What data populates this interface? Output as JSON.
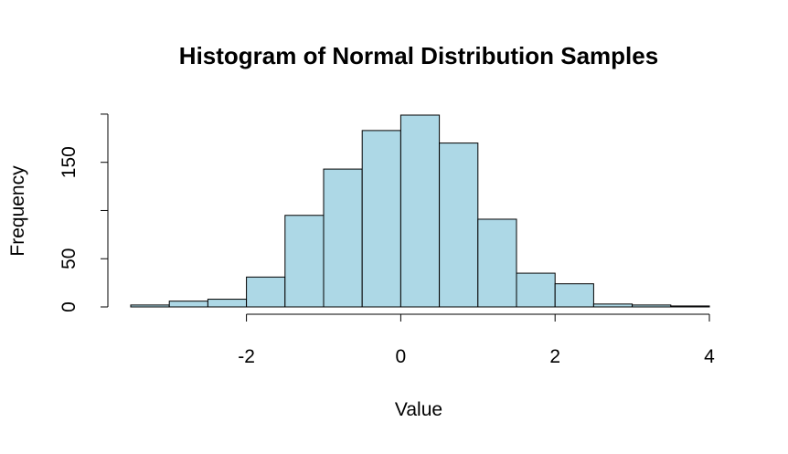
{
  "chart_data": {
    "type": "bar",
    "title": "Histogram of Normal Distribution Samples",
    "xlabel": "Value",
    "ylabel": "Frequency",
    "bar_color": "#ADD8E6",
    "bin_edges": [
      -3.5,
      -3.0,
      -2.5,
      -2.0,
      -1.5,
      -1.0,
      -0.5,
      0.0,
      0.5,
      1.0,
      1.5,
      2.0,
      2.5,
      3.0,
      3.5,
      4.0
    ],
    "values": [
      2,
      6,
      8,
      31,
      95,
      143,
      183,
      199,
      170,
      91,
      35,
      24,
      3,
      2,
      1
    ],
    "x_ticks": [
      -2,
      0,
      2,
      4
    ],
    "x_tick_labels": [
      "-2",
      "0",
      "2",
      "4"
    ],
    "y_ticks": [
      0,
      50,
      150
    ],
    "y_tick_labels": [
      "0",
      "50",
      "150"
    ],
    "y_minor_ticks": [
      100,
      200
    ],
    "xlim": [
      -3.5,
      4.0
    ],
    "ylim": [
      0,
      199
    ],
    "grid": false,
    "legend": "none"
  }
}
